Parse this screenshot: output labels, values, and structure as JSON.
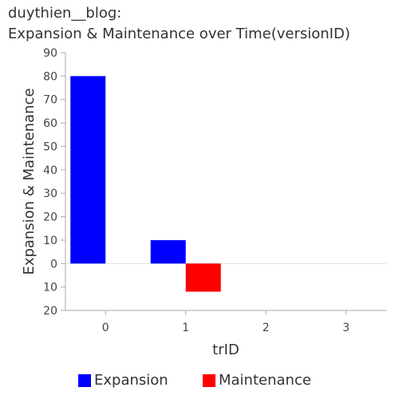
{
  "title": {
    "line1": "duythien__blog:",
    "line2": "Expansion & Maintenance over Time(versionID)"
  },
  "chart_data": {
    "type": "bar",
    "title": "duythien__blog: Expansion & Maintenance over Time(versionID)",
    "xlabel": "trID",
    "ylabel": "Expansion & Maintenance",
    "categories": [
      0,
      1,
      2,
      3
    ],
    "series": [
      {
        "name": "Expansion",
        "color": "#0000ff",
        "values": [
          80,
          10,
          0,
          0
        ]
      },
      {
        "name": "Maintenance",
        "color": "#ff0000",
        "values": [
          0,
          -12,
          0,
          0
        ]
      }
    ],
    "ylim": [
      -20,
      90
    ],
    "y_ticks": [
      90,
      80,
      70,
      60,
      50,
      40,
      30,
      20,
      10,
      0,
      -10,
      -20
    ],
    "y_tick_labels": [
      "90",
      "80",
      "70",
      "60",
      "50",
      "40",
      "30",
      "20",
      "10",
      "0",
      "10",
      "20"
    ],
    "grid": false,
    "legend_position": "bottom"
  }
}
